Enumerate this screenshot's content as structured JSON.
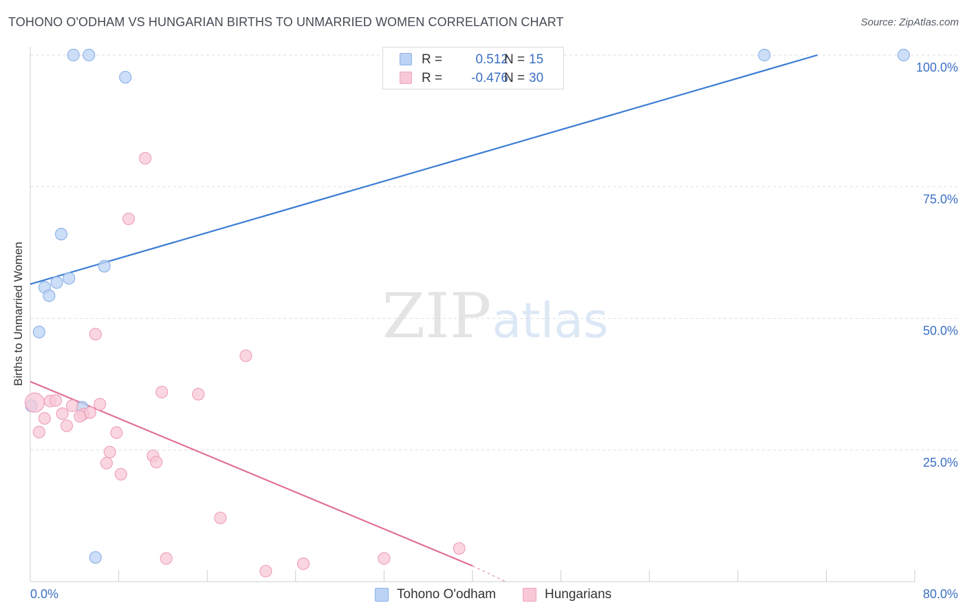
{
  "title": "TOHONO O'ODHAM VS HUNGARIAN BIRTHS TO UNMARRIED WOMEN CORRELATION CHART",
  "source_label": "Source:",
  "source_value": "ZipAtlas.com",
  "watermark": {
    "zip": "ZIP",
    "atlas": "atlas"
  },
  "colors": {
    "blue": "#3a7bd5",
    "blue_fill": "#bcd3f5",
    "blue_edge": "#8cb2e8",
    "pink": "#e07098",
    "pink_fill": "#f8c8d7",
    "pink_edge": "#eea3bb",
    "grid": "#d9dde3",
    "tick_text": "#3a6fc4"
  },
  "legend": {
    "rows": [
      {
        "r_label": "R =",
        "r_value": "0.512",
        "n_label": "N =",
        "n_value": "15"
      },
      {
        "r_label": "R =",
        "r_value": "-0.476",
        "n_label": "N =",
        "n_value": "30"
      }
    ]
  },
  "bottom_legend": {
    "series1": "Tohono O'odham",
    "series2": "Hungarians"
  },
  "chart_data": {
    "type": "scatter",
    "title": "TOHONO O'ODHAM VS HUNGARIAN BIRTHS TO UNMARRIED WOMEN CORRELATION CHART",
    "xlabel": "",
    "ylabel": "Births to Unmarried Women",
    "xlim": [
      0,
      80
    ],
    "ylim": [
      0,
      100
    ],
    "x_tick_labels": [
      {
        "value": 0,
        "label": "0.0%"
      },
      {
        "value": 80,
        "label": "80.0%"
      }
    ],
    "x_minor_ticks": [
      0,
      8,
      16,
      24,
      32,
      40,
      48,
      56,
      64,
      72,
      80
    ],
    "y_ticks": [
      {
        "value": 25,
        "label": "25.0%"
      },
      {
        "value": 50,
        "label": "50.0%"
      },
      {
        "value": 75,
        "label": "75.0%"
      },
      {
        "value": 100,
        "label": "100.0%"
      }
    ],
    "series": [
      {
        "name": "Tohono O'odham",
        "color": "blue",
        "points": [
          {
            "x": 3.9,
            "y": 100.0
          },
          {
            "x": 5.3,
            "y": 100.0
          },
          {
            "x": 8.6,
            "y": 95.8
          },
          {
            "x": 66.4,
            "y": 100.0
          },
          {
            "x": 79.0,
            "y": 100.0
          },
          {
            "x": 2.8,
            "y": 66.0
          },
          {
            "x": 6.7,
            "y": 59.9
          },
          {
            "x": 3.5,
            "y": 57.6
          },
          {
            "x": 2.4,
            "y": 56.8
          },
          {
            "x": 1.3,
            "y": 55.9
          },
          {
            "x": 1.7,
            "y": 54.3
          },
          {
            "x": 0.8,
            "y": 47.4
          },
          {
            "x": 0.1,
            "y": 33.4
          },
          {
            "x": 4.7,
            "y": 33.1
          },
          {
            "x": 5.9,
            "y": 4.6
          }
        ],
        "trend": {
          "x1": 0,
          "y1": 56.5,
          "x2": 71.2,
          "y2": 100.0
        }
      },
      {
        "name": "Hungarians",
        "color": "pink",
        "points": [
          {
            "x": 10.4,
            "y": 80.4
          },
          {
            "x": 8.9,
            "y": 68.9
          },
          {
            "x": 5.9,
            "y": 47.0
          },
          {
            "x": 19.5,
            "y": 42.9
          },
          {
            "x": 11.9,
            "y": 36.0
          },
          {
            "x": 15.2,
            "y": 35.6
          },
          {
            "x": 0.4,
            "y": 34.0
          },
          {
            "x": 1.8,
            "y": 34.3
          },
          {
            "x": 2.3,
            "y": 34.4
          },
          {
            "x": 6.3,
            "y": 33.7
          },
          {
            "x": 3.8,
            "y": 33.4
          },
          {
            "x": 2.9,
            "y": 31.9
          },
          {
            "x": 4.8,
            "y": 31.8
          },
          {
            "x": 5.4,
            "y": 32.1
          },
          {
            "x": 4.5,
            "y": 31.4
          },
          {
            "x": 1.3,
            "y": 31.0
          },
          {
            "x": 3.3,
            "y": 29.6
          },
          {
            "x": 0.8,
            "y": 28.4
          },
          {
            "x": 7.8,
            "y": 28.3
          },
          {
            "x": 7.2,
            "y": 24.6
          },
          {
            "x": 11.1,
            "y": 23.9
          },
          {
            "x": 11.4,
            "y": 22.7
          },
          {
            "x": 6.9,
            "y": 22.5
          },
          {
            "x": 8.2,
            "y": 20.4
          },
          {
            "x": 17.2,
            "y": 12.1
          },
          {
            "x": 38.8,
            "y": 6.3
          },
          {
            "x": 12.3,
            "y": 4.4
          },
          {
            "x": 32.0,
            "y": 4.4
          },
          {
            "x": 24.7,
            "y": 3.4
          },
          {
            "x": 21.3,
            "y": 2.0
          }
        ],
        "trend": {
          "x1": 0,
          "y1": 38.0,
          "x2": 40.0,
          "y2": 3.0
        },
        "trend_dashed": {
          "x1": 40.0,
          "y1": 3.0,
          "x2": 43.0,
          "y2": 0.0
        }
      }
    ]
  }
}
